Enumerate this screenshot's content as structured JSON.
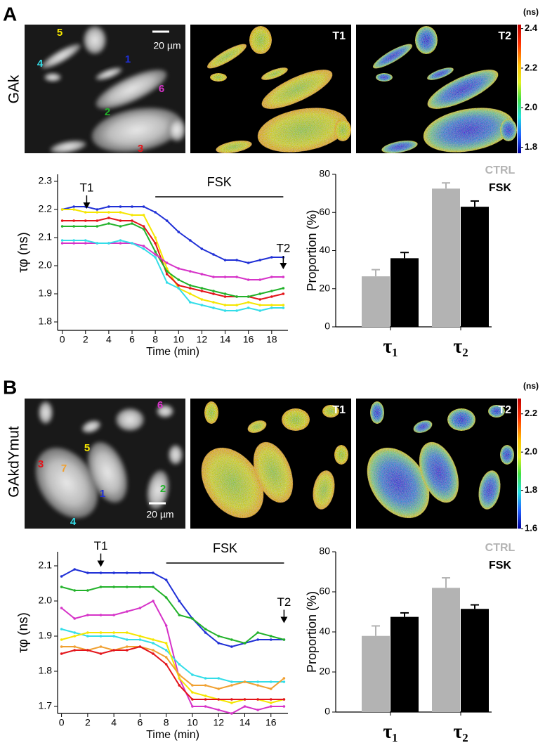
{
  "panels": [
    {
      "label": "A",
      "construct": "GAk",
      "scale_bar": "20 µm",
      "image_labels": [
        "T1",
        "T2"
      ],
      "colorbar": {
        "unit": "(ns)",
        "lim": [
          1.77,
          2.42
        ],
        "ticks": [
          1.8,
          {
            "value": 2,
            "label": "2.0"
          },
          2.2,
          2.4
        ]
      }
    },
    {
      "label": "B",
      "construct": "GAkdYmut",
      "scale_bar": "20 µm",
      "image_labels": [
        "T1",
        "T2"
      ],
      "colorbar": {
        "unit": "(ns)",
        "lim": [
          1.6,
          2.28
        ],
        "ticks": [
          1.6,
          1.8,
          {
            "value": 2,
            "label": "2.0"
          },
          2.2
        ]
      }
    }
  ],
  "chart_data": [
    {
      "type": "line",
      "xlabel": "Time (min)",
      "ylabel": "τφ (ns)",
      "xlim": [
        -0.4,
        19.4
      ],
      "xticks": [
        0,
        2,
        4,
        6,
        8,
        10,
        12,
        14,
        16,
        18
      ],
      "ylim": [
        1.77,
        2.325
      ],
      "yticks": [
        1.8,
        1.9,
        {
          "value": 2,
          "label": "2.0"
        },
        2.1,
        2.2,
        2.3
      ],
      "x": [
        0,
        1,
        2,
        3,
        4,
        5,
        6,
        7,
        8,
        9,
        10,
        11,
        12,
        13,
        14,
        15,
        16,
        17,
        18,
        19
      ],
      "series": [
        {
          "name": "1",
          "color": "#1f2fd6",
          "values": [
            2.2,
            2.21,
            2.21,
            2.2,
            2.21,
            2.21,
            2.21,
            2.21,
            2.19,
            2.16,
            2.12,
            2.09,
            2.06,
            2.04,
            2.02,
            2.02,
            2.01,
            2.02,
            2.03,
            2.03
          ]
        },
        {
          "name": "5",
          "color": "#f5e600",
          "values": [
            2.2,
            2.2,
            2.19,
            2.19,
            2.19,
            2.19,
            2.18,
            2.18,
            2.1,
            1.99,
            1.92,
            1.9,
            1.88,
            1.87,
            1.86,
            1.86,
            1.87,
            1.86,
            1.86,
            1.86
          ]
        },
        {
          "name": "3",
          "color": "#e3141a",
          "values": [
            2.16,
            2.16,
            2.16,
            2.16,
            2.17,
            2.16,
            2.16,
            2.14,
            2.08,
            1.97,
            1.93,
            1.92,
            1.91,
            1.9,
            1.89,
            1.89,
            1.89,
            1.88,
            1.89,
            1.9
          ]
        },
        {
          "name": "2",
          "color": "#22b22a",
          "values": [
            2.14,
            2.14,
            2.14,
            2.14,
            2.15,
            2.14,
            2.15,
            2.13,
            2.05,
            1.98,
            1.95,
            1.93,
            1.92,
            1.91,
            1.9,
            1.89,
            1.89,
            1.9,
            1.91,
            1.92
          ]
        },
        {
          "name": "6",
          "color": "#d633c8",
          "values": [
            2.08,
            2.08,
            2.08,
            2.08,
            2.08,
            2.08,
            2.08,
            2.07,
            2.04,
            2.01,
            1.99,
            1.98,
            1.97,
            1.96,
            1.96,
            1.96,
            1.95,
            1.95,
            1.96,
            1.96
          ]
        },
        {
          "name": "4",
          "color": "#33dde8",
          "values": [
            2.09,
            2.09,
            2.09,
            2.08,
            2.08,
            2.09,
            2.08,
            2.06,
            2.03,
            1.94,
            1.92,
            1.87,
            1.86,
            1.85,
            1.84,
            1.84,
            1.85,
            1.84,
            1.85,
            1.85
          ]
        }
      ],
      "annotations": [
        {
          "text": "T1",
          "x": 2.1,
          "y": 2.275,
          "arrow": true
        },
        {
          "text": "T2",
          "x": 19,
          "y": 2.06,
          "arrow": true
        },
        {
          "text": "FSK",
          "x_start": 8,
          "x_end": 19,
          "y": 2.245
        }
      ]
    },
    {
      "type": "bar",
      "ylabel": "Proportion (%)",
      "categories": [
        "τ₁",
        "τ₂"
      ],
      "ylim": [
        0,
        80
      ],
      "yticks": [
        0,
        20,
        40,
        60,
        80
      ],
      "legend": "upper right",
      "series": [
        {
          "name": "CTRL",
          "color": "#b3b3b3",
          "values": [
            26.5,
            72.5
          ],
          "errors": [
            3.5,
            3
          ]
        },
        {
          "name": "FSK",
          "color": "#000000",
          "values": [
            36,
            63
          ],
          "errors": [
            3,
            3
          ]
        }
      ]
    },
    {
      "type": "line",
      "xlabel": "Time (min)",
      "ylabel": "τφ (ns)",
      "xlim": [
        -0.3,
        17.3
      ],
      "xticks": [
        0,
        2,
        4,
        6,
        8,
        10,
        12,
        14,
        16
      ],
      "ylim": [
        1.68,
        2.14
      ],
      "yticks": [
        1.7,
        1.8,
        1.9,
        {
          "value": 2,
          "label": "2.0"
        },
        2.1
      ],
      "x": [
        0,
        1,
        2,
        3,
        4,
        5,
        6,
        7,
        8,
        9,
        10,
        11,
        12,
        13,
        14,
        15,
        16,
        17
      ],
      "series": [
        {
          "name": "1",
          "color": "#1f2fd6",
          "values": [
            2.07,
            2.09,
            2.08,
            2.08,
            2.08,
            2.08,
            2.08,
            2.08,
            2.06,
            2.0,
            1.95,
            1.91,
            1.88,
            1.87,
            1.88,
            1.89,
            1.89,
            1.89
          ]
        },
        {
          "name": "2",
          "color": "#22b22a",
          "values": [
            2.04,
            2.03,
            2.03,
            2.04,
            2.04,
            2.04,
            2.04,
            2.04,
            2.01,
            1.96,
            1.95,
            1.92,
            1.9,
            1.89,
            1.88,
            1.91,
            1.9,
            1.89
          ]
        },
        {
          "name": "6",
          "color": "#d633c8",
          "values": [
            1.98,
            1.95,
            1.96,
            1.96,
            1.96,
            1.97,
            1.98,
            2.0,
            1.93,
            1.78,
            1.7,
            1.7,
            1.69,
            1.68,
            1.7,
            1.69,
            1.7,
            1.7
          ]
        },
        {
          "name": "4",
          "color": "#33dde8",
          "values": [
            1.92,
            1.91,
            1.9,
            1.9,
            1.9,
            1.89,
            1.89,
            1.88,
            1.86,
            1.82,
            1.79,
            1.78,
            1.78,
            1.77,
            1.77,
            1.77,
            1.77,
            1.77
          ]
        },
        {
          "name": "5",
          "color": "#f5e600",
          "values": [
            1.89,
            1.9,
            1.91,
            1.91,
            1.91,
            1.91,
            1.9,
            1.89,
            1.88,
            1.78,
            1.74,
            1.73,
            1.72,
            1.71,
            1.72,
            1.72,
            1.71,
            1.72
          ]
        },
        {
          "name": "7",
          "color": "#f0a030",
          "values": [
            1.87,
            1.87,
            1.86,
            1.87,
            1.86,
            1.87,
            1.87,
            1.86,
            1.84,
            1.79,
            1.76,
            1.76,
            1.75,
            1.76,
            1.77,
            1.76,
            1.75,
            1.78
          ]
        },
        {
          "name": "3",
          "color": "#e3141a",
          "values": [
            1.85,
            1.86,
            1.86,
            1.85,
            1.86,
            1.86,
            1.87,
            1.85,
            1.82,
            1.76,
            1.72,
            1.72,
            1.72,
            1.72,
            1.72,
            1.72,
            1.72,
            1.72
          ]
        }
      ],
      "annotations": [
        {
          "text": "T1",
          "x": 3,
          "y": 2.155,
          "arrow": true
        },
        {
          "text": "T2",
          "x": 17,
          "y": 1.995,
          "arrow": true
        },
        {
          "text": "FSK",
          "x_start": 8,
          "x_end": 17,
          "y": 2.108
        }
      ]
    },
    {
      "type": "bar",
      "ylabel": "Proportion (%)",
      "categories": [
        "τ₁",
        "τ₂"
      ],
      "ylim": [
        0,
        80
      ],
      "yticks": [
        0,
        20,
        40,
        60,
        80
      ],
      "legend": "upper right",
      "series": [
        {
          "name": "CTRL",
          "color": "#b3b3b3",
          "values": [
            38,
            62
          ],
          "errors": [
            5,
            5
          ]
        },
        {
          "name": "FSK",
          "color": "#000000",
          "values": [
            47.5,
            51.5
          ],
          "errors": [
            2,
            2
          ]
        }
      ]
    }
  ]
}
